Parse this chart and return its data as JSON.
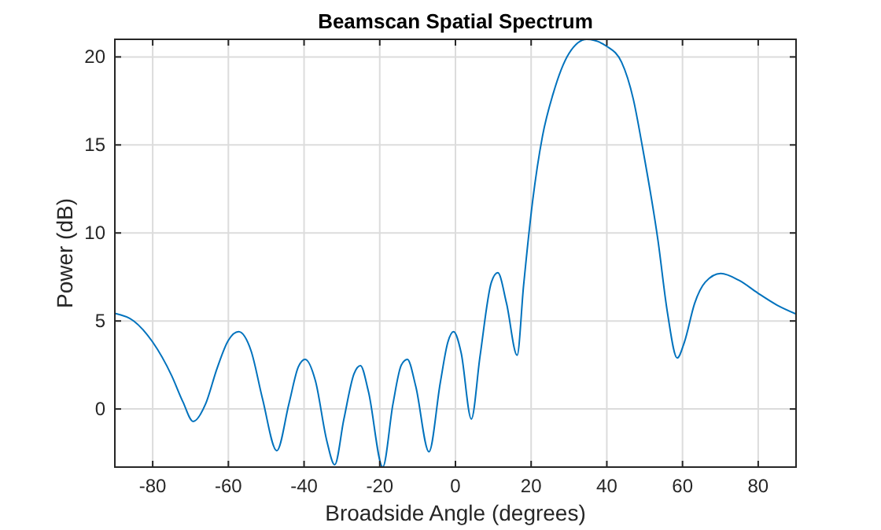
{
  "chart_data": {
    "type": "line",
    "title": "Beamscan Spatial Spectrum",
    "xlabel": "Broadside Angle (degrees)",
    "ylabel": "Power (dB)",
    "x": [
      -90,
      -85,
      -80,
      -75,
      -72,
      -69.3,
      -66,
      -63,
      -60,
      -57.3,
      -54,
      -51,
      -47.2,
      -44,
      -41.5,
      -39.7,
      -37,
      -34,
      -31.9,
      -29.5,
      -26.8,
      -25.1,
      -23,
      -19.2,
      -16.5,
      -14.3,
      -12.7,
      -10.5,
      -7,
      -4,
      -2,
      -0.5,
      1.5,
      4.2,
      6.5,
      9.5,
      11.2,
      13.5,
      16.3,
      18,
      20.3,
      23,
      25.8,
      30,
      34.7,
      40,
      43.9,
      47,
      49.4,
      53.5,
      56,
      58.6,
      60.5,
      63.2,
      66,
      70.1,
      75,
      79.8,
      85,
      90
    ],
    "series": [
      {
        "color": "#0072bd",
        "values": [
          5.43,
          5.0,
          3.8,
          1.9,
          0.4,
          -0.71,
          0.3,
          2.3,
          3.9,
          4.39,
          3.3,
          0.6,
          -2.37,
          0.3,
          2.4,
          2.82,
          1.6,
          -1.8,
          -3.17,
          -0.6,
          2.0,
          2.46,
          1.0,
          -3.3,
          0.3,
          2.5,
          2.82,
          1.3,
          -2.43,
          1.5,
          3.8,
          4.39,
          3.2,
          -0.57,
          3.0,
          7.2,
          7.74,
          6.0,
          3.05,
          7.0,
          11.65,
          15.5,
          17.9,
          20.2,
          21.0,
          20.6,
          19.7,
          17.6,
          14.9,
          9.6,
          5.5,
          2.9,
          3.8,
          6.0,
          7.2,
          7.7,
          7.3,
          6.6,
          5.9,
          5.4
        ]
      }
    ],
    "xlim": [
      -90,
      90
    ],
    "xticks": [
      -80,
      -60,
      -40,
      -20,
      0,
      20,
      40,
      60,
      80
    ],
    "ylim": [
      -3.3,
      21
    ],
    "yticks": [
      0,
      5,
      10,
      15,
      20
    ],
    "grid": true,
    "marker": "none",
    "line_style": "solid"
  }
}
